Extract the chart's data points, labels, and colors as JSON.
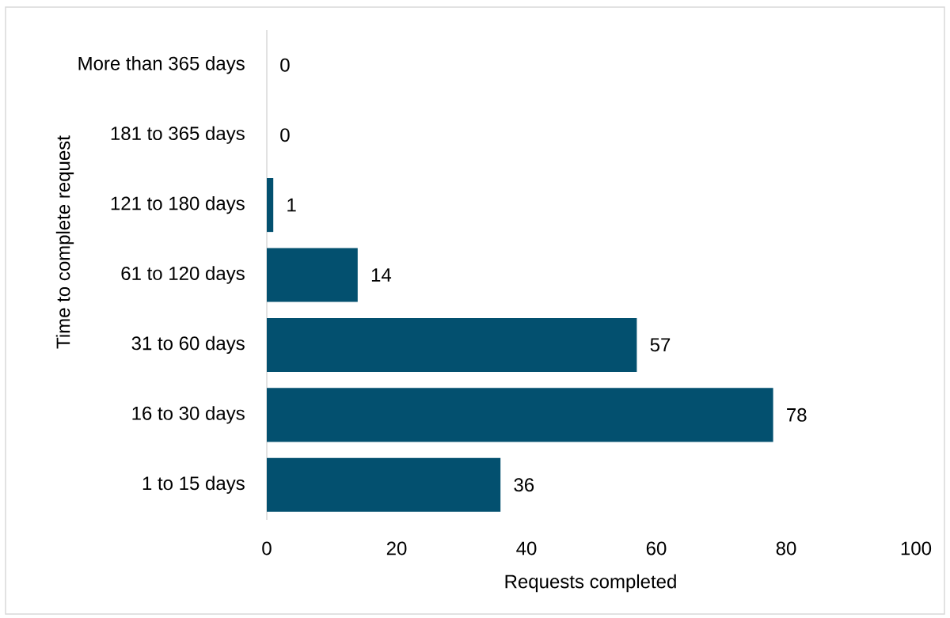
{
  "chart_data": {
    "type": "bar",
    "orientation": "horizontal",
    "xlabel": "Requests completed",
    "ylabel": "Time to complete request",
    "categories": [
      "More than 365 days",
      "181 to 365 days",
      "121 to 180 days",
      "61 to 120 days",
      "31 to 60 days",
      "16 to 30 days",
      "1 to 15 days"
    ],
    "values": [
      0,
      0,
      1,
      14,
      57,
      78,
      36
    ],
    "color": "#03506f",
    "xlim": [
      0,
      100
    ],
    "xticks": [
      0,
      20,
      40,
      60,
      80,
      100
    ],
    "data_labels": true
  }
}
